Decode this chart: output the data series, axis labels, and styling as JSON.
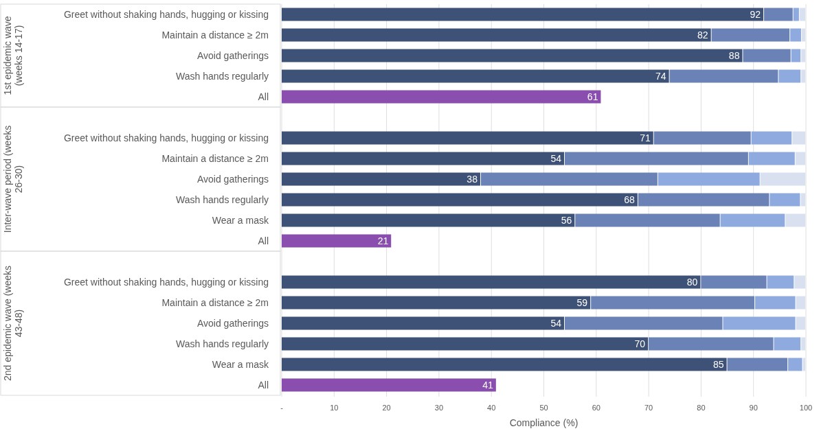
{
  "chart_data": {
    "type": "bar",
    "orientation": "horizontal",
    "stacked": true,
    "xlabel": "Compliance (%)",
    "categories": [
      "Greet without shaking hands, hugging or kissing",
      "Maintain a distance ≥ 2m",
      "Avoid gatherings",
      "Wash hands regularly",
      "All",
      null,
      "Greet without shaking hands, hugging or kissing",
      "Maintain a distance ≥ 2m",
      "Avoid gatherings",
      "Wash hands regularly",
      "Wear a mask",
      "All",
      null,
      "Greet without shaking hands, hugging or kissing",
      "Maintain a distance ≥ 2m",
      "Avoid gatherings",
      "Wash hands regularly",
      "Wear a mask",
      "All"
    ],
    "annotations": [
      "1st epidemic wave (weeks 14-17)",
      "Inter-wave period (weeks 26-30)",
      "2nd epidemic wave (weeks 43-48)"
    ],
    "series": [
      {
        "color": "#3e5177",
        "colors": [
          null,
          null,
          null,
          null,
          "#8a4fae",
          null,
          null,
          null,
          null,
          null,
          null,
          "#8a4fae",
          null,
          null,
          null,
          null,
          null,
          null,
          "#8a4fae"
        ],
        "values": [
          92,
          82,
          88,
          74,
          61,
          null,
          71,
          54,
          38,
          68,
          56,
          21,
          null,
          80,
          59,
          54,
          70,
          85,
          41
        ],
        "value_labels": [
          "92",
          "82",
          "88",
          "74",
          "61",
          null,
          "71",
          "54",
          "38",
          "68",
          "56",
          "21",
          null,
          "80",
          "59",
          "54",
          "70",
          "85",
          "41"
        ]
      },
      {
        "color": "#6a82b5",
        "values": [
          5.6,
          15,
          9.2,
          20.8,
          null,
          null,
          18.6,
          35.1,
          33.8,
          25.1,
          27.7,
          null,
          null,
          12.6,
          31.3,
          30.2,
          23.9,
          11.6,
          null
        ]
      },
      {
        "color": "#8eaade",
        "values": [
          1.2,
          2.2,
          1.9,
          4.3,
          null,
          null,
          7.8,
          8.9,
          19.5,
          5.9,
          12.4,
          null,
          null,
          5.2,
          7.8,
          13.9,
          5.2,
          2.8,
          null
        ]
      },
      {
        "color": "#d9e1f0",
        "values": [
          1.2,
          0.8,
          0.9,
          0.9,
          null,
          null,
          2.6,
          2,
          8.7,
          1,
          3.9,
          null,
          null,
          2.2,
          1.9,
          1.9,
          0.9,
          0.6,
          null
        ]
      }
    ],
    "xlim": [
      0,
      100
    ],
    "xticks": [
      {
        "value": 0,
        "label": "-"
      },
      10,
      20,
      30,
      40,
      50,
      60,
      70,
      80,
      90,
      100
    ],
    "grid": "x"
  }
}
